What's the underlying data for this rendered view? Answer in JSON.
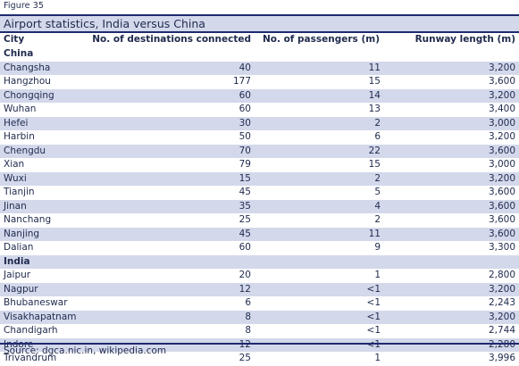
{
  "figure_label": "Figure 35",
  "title": "Airport statistics, India versus China",
  "columns": {
    "city": "City",
    "destinations": "No. of destinations connected",
    "passengers": "No. of passengers (m)",
    "runway": "Runway length (m)"
  },
  "groups": [
    {
      "name": "China",
      "rows": [
        {
          "city": "Changsha",
          "destinations": "40",
          "passengers": "11",
          "runway": "3,200"
        },
        {
          "city": "Hangzhou",
          "destinations": "177",
          "passengers": "15",
          "runway": "3,600"
        },
        {
          "city": "Chongqing",
          "destinations": "60",
          "passengers": "14",
          "runway": "3,200"
        },
        {
          "city": "Wuhan",
          "destinations": "60",
          "passengers": "13",
          "runway": "3,400"
        },
        {
          "city": "Hefei",
          "destinations": "30",
          "passengers": "2",
          "runway": "3,000"
        },
        {
          "city": "Harbin",
          "destinations": "50",
          "passengers": "6",
          "runway": "3,200"
        },
        {
          "city": "Chengdu",
          "destinations": "70",
          "passengers": "22",
          "runway": "3,600"
        },
        {
          "city": "Xian",
          "destinations": "79",
          "passengers": "15",
          "runway": "3,000"
        },
        {
          "city": "Wuxi",
          "destinations": "15",
          "passengers": "2",
          "runway": "3,200"
        },
        {
          "city": "Tianjin",
          "destinations": "45",
          "passengers": "5",
          "runway": "3,600"
        },
        {
          "city": "Jinan",
          "destinations": "35",
          "passengers": "4",
          "runway": "3,600"
        },
        {
          "city": "Nanchang",
          "destinations": "25",
          "passengers": "2",
          "runway": "3,600"
        },
        {
          "city": "Nanjing",
          "destinations": "45",
          "passengers": "11",
          "runway": "3,600"
        },
        {
          "city": "Dalian",
          "destinations": "60",
          "passengers": "9",
          "runway": "3,300"
        }
      ]
    },
    {
      "name": "India",
      "rows": [
        {
          "city": "Jaipur",
          "destinations": "20",
          "passengers": "1",
          "runway": "2,800"
        },
        {
          "city": "Nagpur",
          "destinations": "12",
          "passengers": "<1",
          "runway": "3,200"
        },
        {
          "city": "Bhubaneswar",
          "destinations": "6",
          "passengers": "<1",
          "runway": "2,243"
        },
        {
          "city": "Visakhapatnam",
          "destinations": "8",
          "passengers": "<1",
          "runway": "3,200"
        },
        {
          "city": "Chandigarh",
          "destinations": "8",
          "passengers": "<1",
          "runway": "2,744"
        },
        {
          "city": "Indore",
          "destinations": "12",
          "passengers": "<1",
          "runway": "2,280"
        },
        {
          "city": "Trivandrum",
          "destinations": "25",
          "passengers": "1",
          "runway": "3,996"
        }
      ]
    }
  ],
  "source": "Source: dgca.nic.in, wikipedia.com",
  "colors": {
    "text": "#1f2a4d",
    "shade": "#d3d8eb",
    "rule": "#1f2a70"
  }
}
